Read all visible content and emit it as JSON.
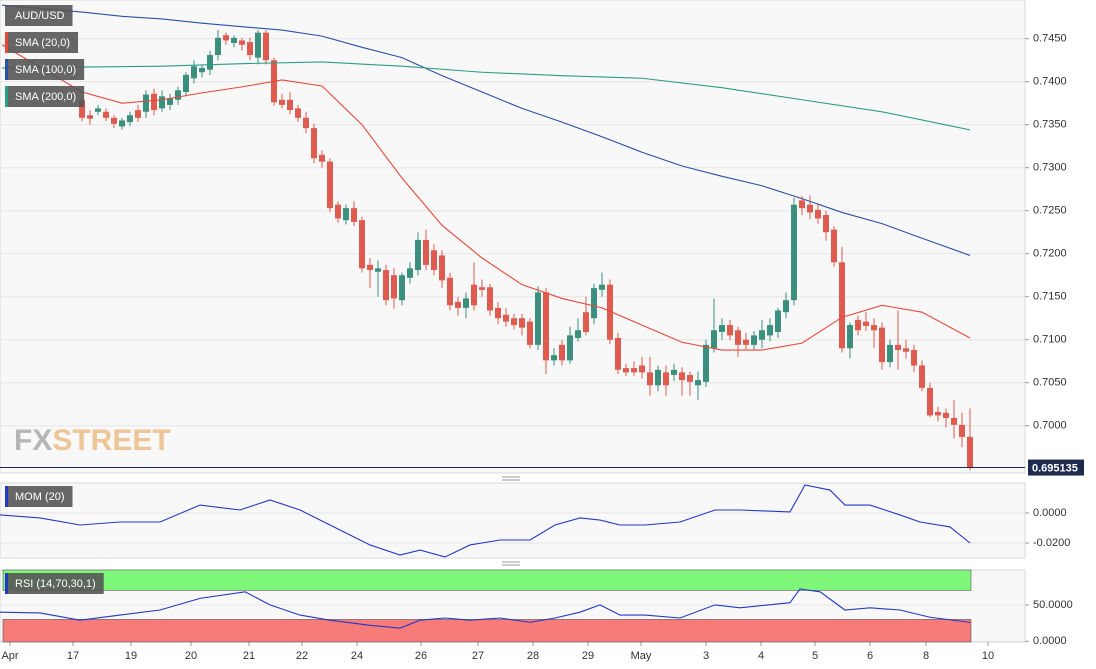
{
  "chart_data": [
    {
      "type": "candlestick",
      "title": "AUD/USD",
      "up_color": "#3b8f7d",
      "down_color": "#df5a4f",
      "xlim": [
        -10.25,
        117.875
      ],
      "xticks": [
        {
          "value": -9,
          "label": "Apr"
        },
        {
          "value": -1.125,
          "label": "17"
        },
        {
          "value": 6.125,
          "label": "19"
        },
        {
          "value": 13.625,
          "label": "20"
        },
        {
          "value": 20.875,
          "label": "21"
        },
        {
          "value": 27.5,
          "label": "22"
        },
        {
          "value": 34.375,
          "label": "24"
        },
        {
          "value": 42.375,
          "label": "26"
        },
        {
          "value": 49.5,
          "label": "27"
        },
        {
          "value": 56.375,
          "label": "28"
        },
        {
          "value": 63.25,
          "label": "29"
        },
        {
          "value": 69.875,
          "label": "May"
        },
        {
          "value": 78,
          "label": "3"
        },
        {
          "value": 84.875,
          "label": "4"
        },
        {
          "value": 91.625,
          "label": "5"
        },
        {
          "value": 98.5,
          "label": "6"
        },
        {
          "value": 105.5,
          "label": "8"
        },
        {
          "value": 113.25,
          "label": "10"
        }
      ],
      "ylim": [
        0.6945,
        0.7495
      ],
      "yticks": [
        {
          "value": 0.7,
          "label": "0.7000"
        },
        {
          "value": 0.705,
          "label": "0.7050"
        },
        {
          "value": 0.71,
          "label": "0.7100"
        },
        {
          "value": 0.715,
          "label": "0.7150"
        },
        {
          "value": 0.72,
          "label": "0.7200"
        },
        {
          "value": 0.725,
          "label": "0.7250"
        },
        {
          "value": 0.73,
          "label": "0.7300"
        },
        {
          "value": 0.735,
          "label": "0.7350"
        },
        {
          "value": 0.74,
          "label": "0.7400"
        },
        {
          "value": 0.745,
          "label": "0.7450"
        }
      ],
      "grid": true,
      "ohlc": [
        [
          0.7379,
          0.7383,
          0.7354,
          0.7358
        ],
        [
          0.7361,
          0.7367,
          0.735,
          0.7357
        ],
        [
          0.7365,
          0.7373,
          0.7361,
          0.7369
        ],
        [
          0.7365,
          0.7369,
          0.7354,
          0.7358
        ],
        [
          0.7358,
          0.7361,
          0.7346,
          0.7351
        ],
        [
          0.7348,
          0.7358,
          0.7344,
          0.7355
        ],
        [
          0.7353,
          0.7365,
          0.7348,
          0.7361
        ],
        [
          0.7367,
          0.7373,
          0.7353,
          0.7358
        ],
        [
          0.7365,
          0.739,
          0.7358,
          0.7385
        ],
        [
          0.7386,
          0.7392,
          0.7361,
          0.7367
        ],
        [
          0.7369,
          0.739,
          0.7365,
          0.7383
        ],
        [
          0.7373,
          0.7386,
          0.7367,
          0.7381
        ],
        [
          0.7379,
          0.7394,
          0.7373,
          0.739
        ],
        [
          0.7388,
          0.7411,
          0.7383,
          0.7408
        ],
        [
          0.7404,
          0.7425,
          0.7398,
          0.7418
        ],
        [
          0.7411,
          0.742,
          0.7405,
          0.7416
        ],
        [
          0.7414,
          0.7436,
          0.7408,
          0.7431
        ],
        [
          0.7431,
          0.746,
          0.7425,
          0.7451
        ],
        [
          0.7454,
          0.7457,
          0.7443,
          0.7448
        ],
        [
          0.7445,
          0.7454,
          0.744,
          0.7451
        ],
        [
          0.7448,
          0.7451,
          0.7436,
          0.7443
        ],
        [
          0.7446,
          0.7451,
          0.7425,
          0.7431
        ],
        [
          0.7428,
          0.746,
          0.742,
          0.7457
        ],
        [
          0.7457,
          0.746,
          0.742,
          0.7425
        ],
        [
          0.7425,
          0.7428,
          0.7372,
          0.7376
        ],
        [
          0.7379,
          0.7386,
          0.7369,
          0.7373
        ],
        [
          0.7379,
          0.7388,
          0.7362,
          0.7367
        ],
        [
          0.7369,
          0.7373,
          0.7353,
          0.7358
        ],
        [
          0.7358,
          0.7365,
          0.734,
          0.7346
        ],
        [
          0.7346,
          0.7351,
          0.7305,
          0.7311
        ],
        [
          0.7315,
          0.732,
          0.73,
          0.7307
        ],
        [
          0.7307,
          0.7311,
          0.7248,
          0.7253
        ],
        [
          0.7257,
          0.7261,
          0.7236,
          0.7241
        ],
        [
          0.7239,
          0.7257,
          0.7234,
          0.7253
        ],
        [
          0.7253,
          0.7261,
          0.7232,
          0.7237
        ],
        [
          0.7239,
          0.7243,
          0.7178,
          0.7183
        ],
        [
          0.7187,
          0.7195,
          0.716,
          0.7181
        ],
        [
          0.7179,
          0.7192,
          0.715,
          0.7183
        ],
        [
          0.7181,
          0.7187,
          0.714,
          0.7146
        ],
        [
          0.7175,
          0.7183,
          0.7136,
          0.7148
        ],
        [
          0.7146,
          0.7178,
          0.714,
          0.7175
        ],
        [
          0.7172,
          0.719,
          0.7165,
          0.7183
        ],
        [
          0.7181,
          0.7225,
          0.7175,
          0.7216
        ],
        [
          0.7216,
          0.7228,
          0.7181,
          0.7187
        ],
        [
          0.7204,
          0.7211,
          0.7175,
          0.7181
        ],
        [
          0.7198,
          0.7204,
          0.716,
          0.7169
        ],
        [
          0.7172,
          0.7178,
          0.7134,
          0.714
        ],
        [
          0.7144,
          0.715,
          0.7128,
          0.7137
        ],
        [
          0.7137,
          0.7155,
          0.7125,
          0.7148
        ],
        [
          0.7164,
          0.719,
          0.7134,
          0.714
        ],
        [
          0.7161,
          0.717,
          0.715,
          0.7158
        ],
        [
          0.7161,
          0.7165,
          0.7128,
          0.7134
        ],
        [
          0.7137,
          0.7144,
          0.7118,
          0.7125
        ],
        [
          0.7129,
          0.7137,
          0.7115,
          0.7121
        ],
        [
          0.7125,
          0.713,
          0.7112,
          0.7117
        ],
        [
          0.7125,
          0.713,
          0.7105,
          0.7114
        ],
        [
          0.7121,
          0.7125,
          0.709,
          0.7094
        ],
        [
          0.7094,
          0.7162,
          0.7088,
          0.7155
        ],
        [
          0.7155,
          0.716,
          0.706,
          0.7076
        ],
        [
          0.7076,
          0.709,
          0.707,
          0.7082
        ],
        [
          0.7094,
          0.71,
          0.707,
          0.7076
        ],
        [
          0.7076,
          0.7115,
          0.7072,
          0.7105
        ],
        [
          0.7102,
          0.7125,
          0.7098,
          0.7111
        ],
        [
          0.7132,
          0.715,
          0.7105,
          0.7109
        ],
        [
          0.7125,
          0.7165,
          0.7118,
          0.716
        ],
        [
          0.7158,
          0.7178,
          0.715,
          0.7164
        ],
        [
          0.7164,
          0.717,
          0.7095,
          0.71
        ],
        [
          0.7102,
          0.7108,
          0.706,
          0.7065
        ],
        [
          0.7067,
          0.7072,
          0.7058,
          0.7062
        ],
        [
          0.7067,
          0.7075,
          0.7058,
          0.7062
        ],
        [
          0.707,
          0.708,
          0.7055,
          0.7062
        ],
        [
          0.7062,
          0.708,
          0.7035,
          0.7047
        ],
        [
          0.7047,
          0.707,
          0.704,
          0.7065
        ],
        [
          0.7062,
          0.707,
          0.7035,
          0.7047
        ],
        [
          0.7059,
          0.7072,
          0.7052,
          0.7065
        ],
        [
          0.7062,
          0.7068,
          0.7035,
          0.7053
        ],
        [
          0.7059,
          0.7063,
          0.7035,
          0.7051
        ],
        [
          0.7047,
          0.7063,
          0.703,
          0.7053
        ],
        [
          0.7051,
          0.71,
          0.7045,
          0.7094
        ],
        [
          0.709,
          0.7148,
          0.7085,
          0.7111
        ],
        [
          0.7109,
          0.7125,
          0.71,
          0.7117
        ],
        [
          0.7117,
          0.7123,
          0.71,
          0.7105
        ],
        [
          0.7111,
          0.7115,
          0.708,
          0.7094
        ],
        [
          0.71,
          0.7108,
          0.7088,
          0.7094
        ],
        [
          0.7094,
          0.711,
          0.7088,
          0.7105
        ],
        [
          0.71,
          0.7123,
          0.709,
          0.7111
        ],
        [
          0.7105,
          0.7125,
          0.7098,
          0.7117
        ],
        [
          0.7109,
          0.7137,
          0.7102,
          0.7134
        ],
        [
          0.7132,
          0.7155,
          0.7125,
          0.7146
        ],
        [
          0.7146,
          0.7265,
          0.714,
          0.7257
        ],
        [
          0.7262,
          0.7267,
          0.7245,
          0.7253
        ],
        [
          0.7257,
          0.7268,
          0.724,
          0.7248
        ],
        [
          0.7251,
          0.7258,
          0.7235,
          0.7241
        ],
        [
          0.7245,
          0.725,
          0.7215,
          0.7225
        ],
        [
          0.7228,
          0.7232,
          0.7185,
          0.719
        ],
        [
          0.719,
          0.7208,
          0.7085,
          0.709
        ],
        [
          0.709,
          0.712,
          0.7078,
          0.7117
        ],
        [
          0.7123,
          0.7128,
          0.7105,
          0.7111
        ],
        [
          0.7121,
          0.7132,
          0.711,
          0.7116
        ],
        [
          0.7117,
          0.7125,
          0.709,
          0.7111
        ],
        [
          0.7114,
          0.712,
          0.7065,
          0.7074
        ],
        [
          0.7074,
          0.71,
          0.7068,
          0.7094
        ],
        [
          0.7094,
          0.7134,
          0.7065,
          0.7088
        ],
        [
          0.709,
          0.71,
          0.7078,
          0.7086
        ],
        [
          0.7088,
          0.7094,
          0.7062,
          0.707
        ],
        [
          0.707,
          0.7076,
          0.704,
          0.7044
        ],
        [
          0.7044,
          0.705,
          0.701,
          0.7012
        ],
        [
          0.7016,
          0.7022,
          0.7005,
          0.7012
        ],
        [
          0.7015,
          0.702,
          0.6998,
          0.7009
        ],
        [
          0.7009,
          0.703,
          0.6985,
          0.7001
        ],
        [
          0.7001,
          0.7015,
          0.6975,
          0.6987
        ],
        [
          0.6987,
          0.702,
          0.6948,
          0.6951
        ]
      ],
      "series": [
        {
          "name": "SMA (20,0)",
          "color": "#e8473a",
          "x": [
            -10,
            0,
            5,
            10,
            15,
            20,
            25,
            30,
            35,
            40,
            45,
            50,
            55,
            60,
            65,
            70,
            75,
            80,
            85,
            90,
            95,
            100,
            105,
            111
          ],
          "values": [
            0.7443,
            0.7388,
            0.7375,
            0.7379,
            0.7387,
            0.7394,
            0.7402,
            0.7395,
            0.735,
            0.7288,
            0.7233,
            0.7195,
            0.7164,
            0.7148,
            0.7137,
            0.7117,
            0.7097,
            0.7088,
            0.7088,
            0.7096,
            0.7126,
            0.714,
            0.7132,
            0.7102
          ]
        },
        {
          "name": "SMA (100,0)",
          "color": "#2b4fa8",
          "x": [
            -10,
            0,
            5,
            10,
            15,
            20,
            25,
            30,
            35,
            40,
            45,
            50,
            55,
            60,
            65,
            70,
            75,
            80,
            85,
            90,
            95,
            100,
            105,
            111
          ],
          "values": [
            0.7489,
            0.7481,
            0.7476,
            0.7473,
            0.7468,
            0.7464,
            0.746,
            0.7453,
            0.744,
            0.7428,
            0.7407,
            0.7388,
            0.7369,
            0.7353,
            0.7336,
            0.7318,
            0.7302,
            0.729,
            0.7279,
            0.7264,
            0.7248,
            0.7235,
            0.7218,
            0.7198
          ]
        },
        {
          "name": "SMA (200,0)",
          "color": "#2a9d86",
          "x": [
            -10,
            0,
            10,
            20,
            30,
            40,
            50,
            60,
            70,
            80,
            90,
            100,
            111
          ],
          "values": [
            0.7416,
            0.7417,
            0.7418,
            0.7421,
            0.7423,
            0.7418,
            0.7411,
            0.7407,
            0.7404,
            0.7393,
            0.7379,
            0.7365,
            0.7344
          ]
        }
      ],
      "last_price": 0.695135,
      "last_price_color": "#1d2b4f",
      "watermark": [
        "FX",
        "STREET"
      ]
    },
    {
      "type": "line",
      "ylim": [
        -0.03,
        0.02
      ],
      "yticks": [
        {
          "value": 0,
          "label": "0.0000"
        },
        {
          "value": -0.02,
          "label": "-0.0200"
        }
      ],
      "grid": true,
      "series": [
        {
          "name": "MOM (20)",
          "color": "#2338c7",
          "x": [
            -10.25,
            -5.25,
            -0.25,
            4.75,
            9.75,
            14.75,
            19.75,
            23.5,
            27.25,
            31,
            36,
            39.75,
            42.25,
            45.375,
            48.5,
            52.25,
            56,
            59.125,
            62.25,
            64.75,
            67.25,
            70.375,
            74.75,
            79.125,
            82.25,
            88.5,
            90.375,
            93.5,
            95.375,
            98.5,
            102.25,
            104.75,
            108.5,
            111
          ],
          "values": [
            -0.0013,
            -0.0033,
            -0.008,
            -0.006,
            -0.006,
            0.0053,
            0.002,
            0.0087,
            0.002,
            -0.008,
            -0.0213,
            -0.028,
            -0.0247,
            -0.0293,
            -0.0213,
            -0.018,
            -0.018,
            -0.008,
            -0.0033,
            -0.0047,
            -0.008,
            -0.008,
            -0.006,
            0.002,
            0.002,
            0.0007,
            0.0187,
            0.0153,
            0.0053,
            0.0053,
            -0.0013,
            -0.006,
            -0.0093,
            -0.02
          ]
        }
      ]
    },
    {
      "type": "line",
      "ylim": [
        -1,
        98
      ],
      "yticks": [
        {
          "value": 50,
          "label": "50.0000"
        },
        {
          "value": 0,
          "label": "0.0000"
        }
      ],
      "grid": true,
      "overbought": 70,
      "oversold": 30,
      "overbought_color": "#7ef77a",
      "oversold_color": "#f77b78",
      "series": [
        {
          "name": "RSI (14,70,30,1)",
          "color": "#2338c7",
          "x": [
            -10.25,
            -5.25,
            -0.25,
            4.75,
            9.75,
            14.75,
            20.375,
            23.5,
            27.25,
            31,
            36,
            39.75,
            42.25,
            45.375,
            48.5,
            52.25,
            56,
            59.125,
            62.25,
            64.75,
            67.25,
            70.375,
            74.75,
            79.125,
            82.25,
            88.5,
            89.75,
            92.25,
            95.375,
            98.5,
            102.25,
            106,
            111
          ],
          "values": [
            40,
            39,
            29,
            36,
            43,
            59,
            68,
            50,
            36,
            29,
            22,
            18,
            29,
            32,
            29,
            32,
            26,
            32,
            40,
            50,
            36,
            36,
            32,
            50,
            46,
            53,
            72,
            68,
            43,
            46,
            43,
            33,
            26
          ]
        }
      ]
    }
  ]
}
